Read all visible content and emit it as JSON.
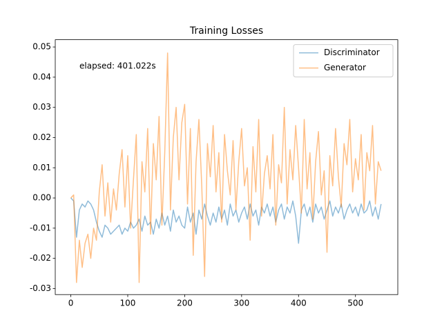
{
  "chart_data": {
    "type": "line",
    "title": "Training Losses",
    "annotation": "elapsed: 401.022s",
    "x": [
      0,
      5,
      10,
      15,
      20,
      25,
      30,
      35,
      40,
      45,
      50,
      55,
      60,
      65,
      70,
      75,
      80,
      85,
      90,
      95,
      100,
      105,
      110,
      115,
      120,
      125,
      130,
      135,
      140,
      145,
      150,
      155,
      160,
      165,
      170,
      175,
      180,
      185,
      190,
      195,
      200,
      205,
      210,
      215,
      220,
      225,
      230,
      235,
      240,
      245,
      250,
      255,
      260,
      265,
      270,
      275,
      280,
      285,
      290,
      295,
      300,
      305,
      310,
      315,
      320,
      325,
      330,
      335,
      340,
      345,
      350,
      355,
      360,
      365,
      370,
      375,
      380,
      385,
      390,
      395,
      400,
      405,
      410,
      415,
      420,
      425,
      430,
      435,
      440,
      445,
      450,
      455,
      460,
      465,
      470,
      475,
      480,
      485,
      490,
      495,
      500,
      505,
      510,
      515,
      520,
      525,
      530,
      535,
      540,
      545
    ],
    "series": [
      {
        "name": "Discriminator",
        "color": "#1f77b4",
        "values": [
          0,
          -0.001,
          -0.013,
          -0.004,
          -0.002,
          -0.003,
          -0.001,
          -0.002,
          -0.004,
          -0.008,
          -0.011,
          -0.013,
          -0.009,
          -0.01,
          -0.012,
          -0.011,
          -0.01,
          -0.009,
          -0.012,
          -0.01,
          -0.011,
          -0.008,
          -0.01,
          -0.009,
          -0.007,
          -0.011,
          -0.006,
          -0.009,
          -0.008,
          -0.012,
          -0.007,
          -0.01,
          -0.005,
          -0.009,
          -0.006,
          -0.011,
          -0.004,
          -0.008,
          -0.006,
          -0.009,
          -0.01,
          -0.003,
          -0.008,
          -0.005,
          -0.012,
          -0.004,
          -0.007,
          -0.002,
          -0.006,
          -0.009,
          -0.005,
          -0.008,
          -0.003,
          -0.007,
          -0.004,
          -0.009,
          -0.002,
          -0.006,
          -0.004,
          -0.008,
          -0.005,
          -0.003,
          -0.007,
          -0.002,
          -0.006,
          -0.004,
          -0.009,
          -0.003,
          -0.005,
          -0.002,
          -0.006,
          -0.003,
          -0.008,
          -0.004,
          -0.002,
          -0.007,
          -0.003,
          -0.005,
          -0.001,
          -0.006,
          -0.015,
          -0.004,
          -0.002,
          -0.006,
          -0.003,
          -0.008,
          -0.002,
          -0.005,
          -0.003,
          -0.007,
          -0.004,
          -0.001,
          -0.006,
          -0.003,
          -0.005,
          -0.002,
          -0.007,
          -0.004,
          -0.002,
          -0.005,
          -0.003,
          -0.006,
          -0.002,
          -0.005,
          -0.004,
          -0.001,
          -0.006,
          -0.003,
          -0.007,
          -0.002
        ]
      },
      {
        "name": "Generator",
        "color": "#ff7f0e",
        "values": [
          0,
          0.001,
          -0.028,
          -0.014,
          -0.023,
          -0.015,
          -0.012,
          -0.02,
          -0.01,
          -0.014,
          0.002,
          0.011,
          -0.006,
          0.005,
          -0.008,
          0.003,
          -0.004,
          0.008,
          0.016,
          -0.003,
          0.014,
          -0.01,
          0.006,
          0.021,
          -0.028,
          0.012,
          0.002,
          0.023,
          -0.012,
          0.018,
          0.006,
          0.027,
          -0.009,
          0.015,
          0.048,
          -0.004,
          0.02,
          0.03,
          0.006,
          0.025,
          0.031,
          -0.002,
          0.023,
          -0.019,
          0.012,
          0.026,
          0.004,
          -0.026,
          0.018,
          0.007,
          0.024,
          0.002,
          0.015,
          -0.008,
          0.021,
          0.009,
          0.001,
          0.019,
          -0.004,
          0.012,
          0.023,
          0.004,
          0.01,
          -0.014,
          0.017,
          0.002,
          0.026,
          -0.006,
          0.008,
          0.014,
          0.003,
          0.021,
          -0.009,
          0.011,
          0.005,
          0.03,
          -0.002,
          0.016,
          0.006,
          0.024,
          0.01,
          -0.005,
          0.026,
          0.003,
          0.015,
          -0.007,
          0.012,
          0.022,
          0.001,
          0.009,
          -0.018,
          0.014,
          0.004,
          0.023,
          0.007,
          -0.003,
          0.018,
          0.011,
          0.026,
          0.002,
          0.013,
          0.006,
          0.021,
          -0.004,
          0.015,
          0.009,
          0.024,
          -0.002,
          0.012,
          0.009
        ]
      }
    ],
    "xlim": [
      -27.35,
      574.35
    ],
    "xticks": [
      0,
      100,
      200,
      300,
      400,
      500
    ],
    "ylim": [
      -0.032,
      0.0524
    ],
    "yticks": [
      {
        "value": -0.03,
        "label": "-0.03"
      },
      {
        "value": -0.02,
        "label": "-0.02"
      },
      {
        "value": -0.01,
        "label": "-0.01"
      },
      {
        "value": 0,
        "label": "0.00"
      },
      {
        "value": 0.01,
        "label": "0.01"
      },
      {
        "value": 0.02,
        "label": "0.02"
      },
      {
        "value": 0.03,
        "label": "0.03"
      },
      {
        "value": 0.04,
        "label": "0.04"
      },
      {
        "value": 0.05,
        "label": "0.05"
      }
    ],
    "legend": "upper right",
    "grid": false
  }
}
